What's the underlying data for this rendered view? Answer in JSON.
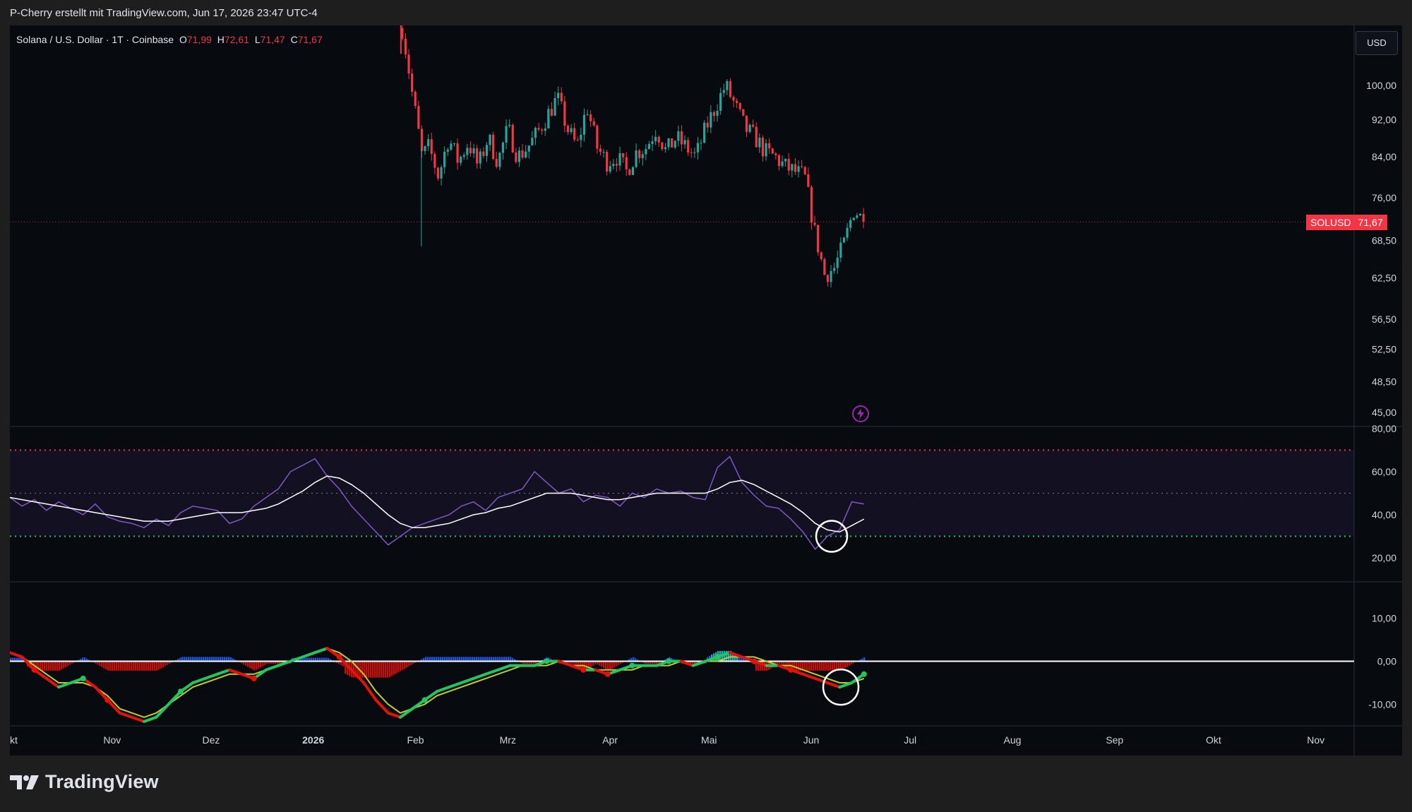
{
  "header": {
    "text": "P-Cherry erstellt mit TradingView.com, Jun 17, 2026 23:47 UTC-4"
  },
  "legend": {
    "symbol": "Solana / U.S. Dollar · 1T · Coinbase",
    "open_label": "O",
    "open": "71,99",
    "high_label": "H",
    "high": "72,61",
    "low_label": "L",
    "low": "71,47",
    "close_label": "C",
    "close": "71,67"
  },
  "currency": "USD",
  "price_tag": {
    "symbol": "SOLUSD",
    "value": "71,67"
  },
  "colors": {
    "bull": "#26a69a",
    "bear": "#f23645",
    "background": "#070a0f",
    "rsi": "#7e57c2",
    "macd_up": "#22c55e",
    "macd_down": "#e3120b"
  },
  "footer": {
    "logo_mark": "17",
    "logo_text": "TradingView"
  },
  "chart_data": [
    {
      "type": "candlestick",
      "title": "Solana / U.S. Dollar · 1T · Coinbase",
      "y_scale": "log",
      "y_ticks": [
        "100,00",
        "92,00",
        "84,00",
        "76,00",
        "68,50",
        "62,50",
        "56,50",
        "52,50",
        "48,50",
        "45,00"
      ],
      "last_price": 71.67,
      "x_ticks": [
        "kt",
        "Nov",
        "Dez",
        "2026",
        "Feb",
        "Mrz",
        "Apr",
        "Mai",
        "Jun",
        "Jul",
        "Aug",
        "Sep",
        "Okt",
        "Nov"
      ],
      "series": [
        {
          "name": "SOLUSD",
          "points": [
            [
              "2026-01-28",
              115
            ],
            [
              "2026-01-31",
              98
            ],
            [
              "2026-02-03",
              84
            ],
            [
              "2026-02-05",
              86
            ],
            [
              "2026-02-08",
              80
            ],
            [
              "2026-02-11",
              88
            ],
            [
              "2026-02-14",
              83
            ],
            [
              "2026-02-17",
              87
            ],
            [
              "2026-02-20",
              82
            ],
            [
              "2026-02-23",
              88
            ],
            [
              "2026-02-26",
              83
            ],
            [
              "2026-03-01",
              90
            ],
            [
              "2026-03-04",
              84
            ],
            [
              "2026-03-07",
              86
            ],
            [
              "2026-03-10",
              89
            ],
            [
              "2026-03-13",
              93
            ],
            [
              "2026-03-16",
              97
            ],
            [
              "2026-03-19",
              90
            ],
            [
              "2026-03-22",
              86
            ],
            [
              "2026-03-25",
              95
            ],
            [
              "2026-03-28",
              86
            ],
            [
              "2026-03-31",
              83
            ],
            [
              "2026-04-03",
              84
            ],
            [
              "2026-04-06",
              81
            ],
            [
              "2026-04-09",
              85
            ],
            [
              "2026-04-12",
              86
            ],
            [
              "2026-04-15",
              90
            ],
            [
              "2026-04-18",
              85
            ],
            [
              "2026-04-21",
              88
            ],
            [
              "2026-04-24",
              86
            ],
            [
              "2026-04-27",
              84
            ],
            [
              "2026-04-30",
              90
            ],
            [
              "2026-05-03",
              95
            ],
            [
              "2026-05-06",
              100
            ],
            [
              "2026-05-09",
              95
            ],
            [
              "2026-05-12",
              90
            ],
            [
              "2026-05-15",
              88
            ],
            [
              "2026-05-18",
              85
            ],
            [
              "2026-05-21",
              84
            ],
            [
              "2026-05-24",
              82
            ],
            [
              "2026-05-27",
              81
            ],
            [
              "2026-05-30",
              80
            ],
            [
              "2026-06-02",
              70
            ],
            [
              "2026-06-05",
              63
            ],
            [
              "2026-06-08",
              64
            ],
            [
              "2026-06-11",
              68
            ],
            [
              "2026-06-14",
              74
            ],
            [
              "2026-06-17",
              71.67
            ]
          ]
        }
      ]
    },
    {
      "type": "line",
      "y_ticks": [
        "80,00",
        "60,00",
        "40,00",
        "20,00"
      ],
      "ylim": [
        15,
        80
      ],
      "levels": [
        70,
        50,
        30
      ],
      "series": [
        {
          "values": [
            48,
            44,
            47,
            42,
            46,
            43,
            40,
            45,
            39,
            37,
            36,
            34,
            38,
            35,
            41,
            44,
            43,
            42,
            36,
            38,
            44,
            48,
            52,
            60,
            63,
            66,
            58,
            52,
            44,
            38,
            32,
            26,
            30,
            34,
            36,
            38,
            40,
            44,
            46,
            42,
            48,
            50,
            52,
            60,
            55,
            50,
            52,
            46,
            49,
            48,
            44,
            50,
            48,
            52,
            50,
            51,
            48,
            47,
            62,
            67,
            55,
            49,
            44,
            43,
            38,
            32,
            24,
            30,
            33,
            46,
            45
          ]
        },
        {
          "values": [
            48,
            47,
            46,
            45,
            44,
            43,
            42,
            41,
            40,
            39,
            38,
            37,
            37,
            37,
            38,
            39,
            40,
            41,
            41,
            41,
            42,
            43,
            45,
            48,
            51,
            55,
            58,
            57,
            54,
            50,
            45,
            40,
            36,
            34,
            34,
            35,
            36,
            38,
            40,
            41,
            43,
            44,
            46,
            48,
            50,
            50,
            50,
            49,
            48,
            47,
            47,
            48,
            49,
            50,
            50,
            50,
            50,
            50,
            52,
            55,
            56,
            54,
            51,
            48,
            45,
            41,
            36,
            33,
            32,
            35,
            38
          ]
        }
      ]
    },
    {
      "type": "bar",
      "y_ticks": [
        "10,00",
        "0,00",
        "-10,00"
      ],
      "ylim": [
        -15,
        15
      ],
      "series": [
        {
          "values": [
            2,
            1,
            -2,
            -4,
            -6,
            -5,
            -4,
            -6,
            -9,
            -12,
            -13,
            -14,
            -13,
            -10,
            -7,
            -5,
            -4,
            -3,
            -2,
            -3,
            -4,
            -2,
            -1,
            0,
            1,
            2,
            3,
            1,
            -2,
            -5,
            -9,
            -12,
            -13,
            -11,
            -9,
            -7,
            -6,
            -5,
            -4,
            -3,
            -2,
            -1,
            -1,
            -1,
            0,
            0,
            -1,
            -2,
            -2,
            -3,
            -2,
            -1,
            -1,
            -1,
            0,
            0,
            -1,
            0,
            1,
            2,
            1,
            0,
            -1,
            -1,
            -2,
            -3,
            -4,
            -5,
            -6,
            -5,
            -3
          ]
        },
        {
          "values": [
            2,
            1,
            -1,
            -3,
            -5,
            -5,
            -5,
            -6,
            -8,
            -11,
            -12,
            -13,
            -12,
            -10,
            -8,
            -6,
            -5,
            -4,
            -3,
            -3,
            -3,
            -2,
            -1,
            0,
            1,
            2,
            3,
            2,
            0,
            -3,
            -7,
            -10,
            -12,
            -11,
            -10,
            -8,
            -7,
            -6,
            -5,
            -4,
            -3,
            -2,
            -1,
            -1,
            -1,
            0,
            -1,
            -1,
            -2,
            -2,
            -2,
            -2,
            -1,
            -1,
            -1,
            0,
            -1,
            0,
            0,
            1,
            1,
            1,
            0,
            -1,
            -1,
            -2,
            -3,
            -4,
            -5,
            -5,
            -4
          ]
        }
      ]
    }
  ]
}
